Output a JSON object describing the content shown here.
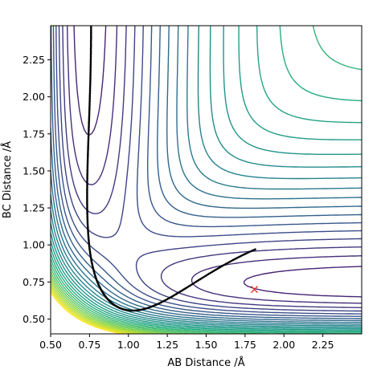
{
  "chart_data": {
    "type": "contour",
    "xlabel": "AB Distance /Å",
    "ylabel": "BC Distance /Å",
    "xlim": [
      0.5,
      2.5
    ],
    "ylim": [
      0.4,
      2.48
    ],
    "xticks": [
      "0.50",
      "0.75",
      "1.00",
      "1.25",
      "1.50",
      "1.75",
      "2.00",
      "2.25"
    ],
    "yticks": [
      "0.50",
      "0.75",
      "1.00",
      "1.25",
      "1.50",
      "1.75",
      "2.00",
      "2.25"
    ],
    "colormap": "viridis",
    "contour_levels": 30,
    "trajectory_start": [
      0.76,
      2.48
    ],
    "trajectory_end": [
      1.81,
      0.7
    ],
    "end_marker": "x",
    "end_marker_color": "#e8322b",
    "trajectory_color": "#000000"
  }
}
